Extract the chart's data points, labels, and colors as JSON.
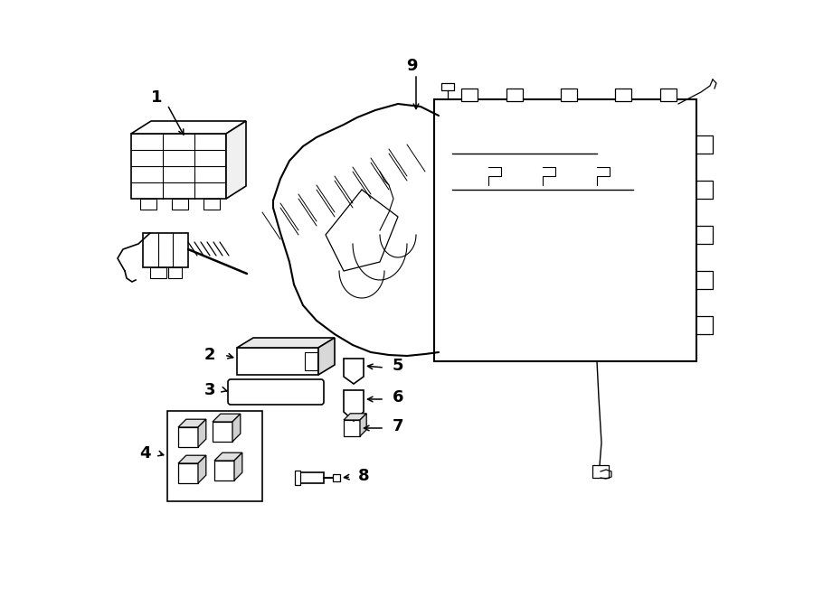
{
  "background_color": "#ffffff",
  "line_color": "#000000",
  "fig_width": 9.0,
  "fig_height": 6.61,
  "dpi": 100,
  "label_fontsize": 13,
  "lw": 1.2
}
